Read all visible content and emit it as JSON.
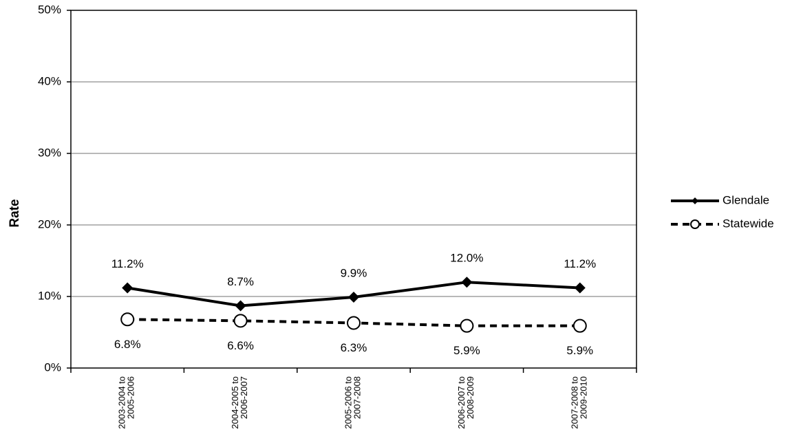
{
  "chart_data": {
    "type": "line",
    "y_label": "Rate",
    "categories": [
      "2003-2004 to 2005-2006",
      "2004-2005 to 2006-2007",
      "2005-2006 to 2007-2008",
      "2006-2007 to 2008-2009",
      "2007-2008 to 2009-2010"
    ],
    "series": [
      {
        "name": "Glendale",
        "color": "#000000",
        "marker": "diamond",
        "dash": false,
        "label_position": "above",
        "values": [
          11.2,
          8.7,
          9.9,
          12.0,
          11.2
        ],
        "value_labels": [
          "11.2%",
          "8.7%",
          "9.9%",
          "12.0%",
          "11.2%"
        ]
      },
      {
        "name": "Statewide",
        "color": "#000000",
        "marker": "open-circle",
        "dash": true,
        "label_position": "below",
        "values": [
          6.8,
          6.6,
          6.3,
          5.9,
          5.9
        ],
        "value_labels": [
          "6.8%",
          "6.6%",
          "6.3%",
          "5.9%",
          "5.9%"
        ]
      }
    ],
    "ylim": [
      0,
      50
    ],
    "yticks": [
      {
        "value": 0,
        "label": "0%"
      },
      {
        "value": 10,
        "label": "10%"
      },
      {
        "value": 20,
        "label": "20%"
      },
      {
        "value": 30,
        "label": "30%"
      },
      {
        "value": 40,
        "label": "40%"
      },
      {
        "value": 50,
        "label": "50%"
      }
    ],
    "grid": true,
    "legend": "right"
  }
}
